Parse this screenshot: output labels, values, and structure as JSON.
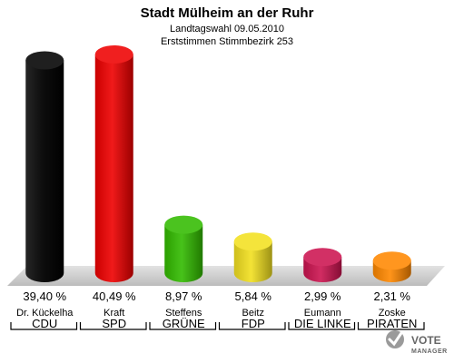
{
  "chart_data": {
    "type": "bar",
    "title": "Stadt Mülheim an der Ruhr",
    "subtitle_1": "Landtagswahl 09.05.2010",
    "subtitle_2": "Erststimmen Stimmbezirk 253",
    "ylim": [
      0,
      42
    ],
    "grid": false,
    "legend": "none",
    "categories": [
      {
        "candidate": "Dr. Kückelha",
        "party": "CDU",
        "value": 39.4,
        "label": "39,40 %",
        "color": "#000000"
      },
      {
        "candidate": "Kraft",
        "party": "SPD",
        "value": 40.49,
        "label": "40,49 %",
        "color": "#ee0000"
      },
      {
        "candidate": "Steffens",
        "party": "GRÜNE",
        "value": 8.97,
        "label": "8,97 %",
        "color": "#33bb00"
      },
      {
        "candidate": "Beitz",
        "party": "FDP",
        "value": 5.84,
        "label": "5,84 %",
        "color": "#f2e020"
      },
      {
        "candidate": "Eumann",
        "party": "DIE LINKE",
        "value": 2.99,
        "label": "2,99 %",
        "color": "#cc1450"
      },
      {
        "candidate": "Zoske",
        "party": "PIRATEN",
        "value": 2.31,
        "label": "2,31 %",
        "color": "#ff8800"
      }
    ]
  },
  "logo": {
    "line1": "VOTE",
    "line2": "MANAGER",
    "icon": "check-mark-icon"
  }
}
